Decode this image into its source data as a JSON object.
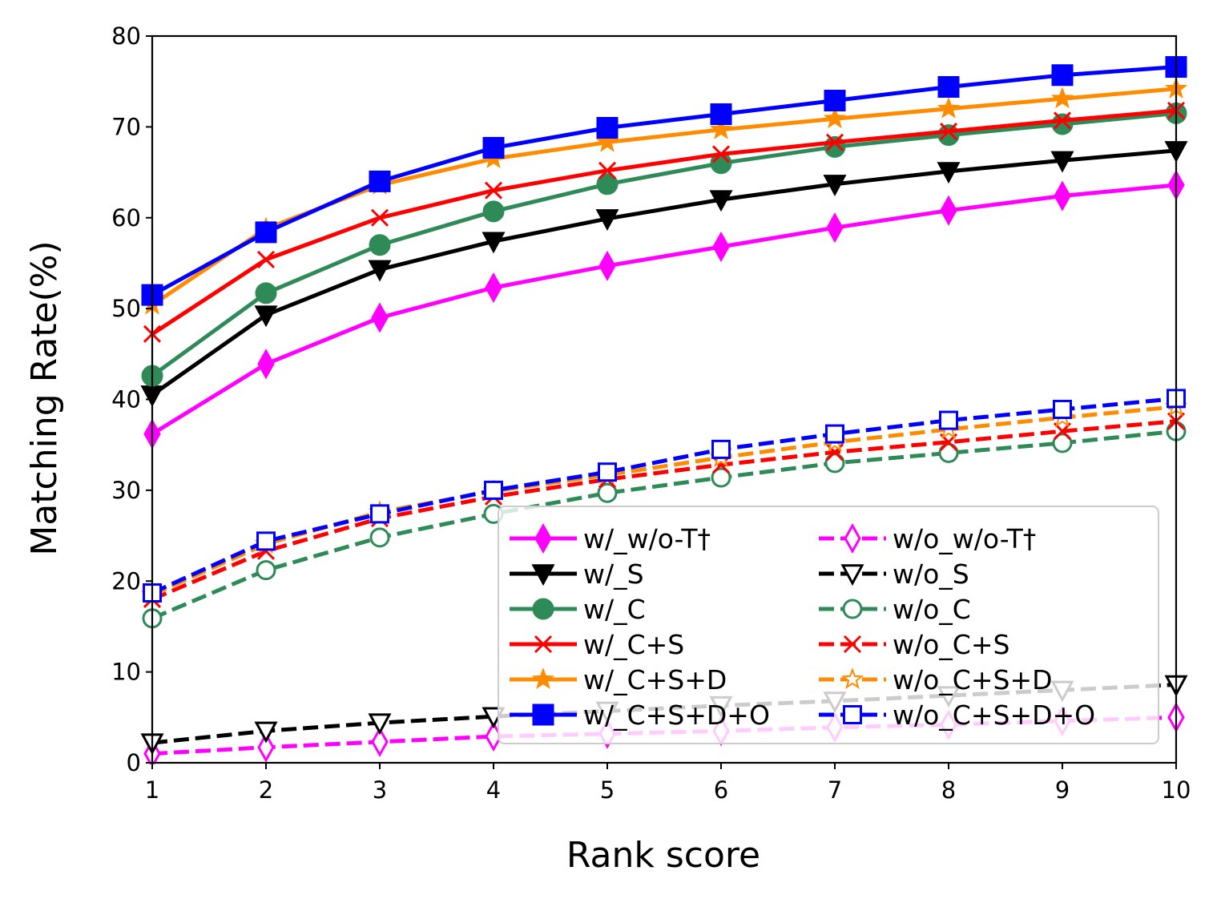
{
  "chart_data": {
    "type": "line",
    "xlabel": "Rank score",
    "ylabel": "Matching Rate(%)",
    "x": [
      1,
      2,
      3,
      4,
      5,
      6,
      7,
      8,
      9,
      10
    ],
    "xlim": [
      1,
      10
    ],
    "ylim": [
      0,
      80
    ],
    "xticks": [
      "1",
      "2",
      "3",
      "4",
      "5",
      "6",
      "7",
      "8",
      "9",
      "10"
    ],
    "yticks": [
      "0",
      "10",
      "20",
      "30",
      "40",
      "50",
      "60",
      "70",
      "80"
    ],
    "grid": false,
    "legend_position": "lower-right",
    "legend_columns": 2,
    "series": [
      {
        "name": "w/_w/o-T†",
        "color": "#ff00ff",
        "dash": "solid",
        "marker": "thin-diamond",
        "filled": true,
        "values": [
          36.2,
          43.9,
          49.0,
          52.3,
          54.7,
          56.8,
          58.9,
          60.8,
          62.4,
          63.6
        ]
      },
      {
        "name": "w/_S",
        "color": "#000000",
        "dash": "solid",
        "marker": "triangle-down",
        "filled": true,
        "values": [
          40.5,
          49.3,
          54.3,
          57.4,
          59.9,
          62.0,
          63.7,
          65.1,
          66.3,
          67.4
        ]
      },
      {
        "name": "w/_C",
        "color": "#2e8b57",
        "dash": "solid",
        "marker": "circle",
        "filled": true,
        "values": [
          42.6,
          51.7,
          57.0,
          60.7,
          63.7,
          66.0,
          67.8,
          69.1,
          70.3,
          71.5
        ]
      },
      {
        "name": "w/_C+S",
        "color": "#ff0000",
        "dash": "solid",
        "marker": "x",
        "filled": true,
        "values": [
          47.2,
          55.4,
          60.0,
          63.0,
          65.2,
          67.0,
          68.3,
          69.5,
          70.7,
          71.8
        ]
      },
      {
        "name": "w/_C+S+D",
        "color": "#ff8c00",
        "dash": "solid",
        "marker": "star",
        "filled": true,
        "values": [
          50.4,
          58.8,
          63.6,
          66.5,
          68.3,
          69.7,
          70.9,
          72.0,
          73.1,
          74.2
        ]
      },
      {
        "name": "w/_C+S+D+O",
        "color": "#0000ff",
        "dash": "solid",
        "marker": "square",
        "filled": true,
        "values": [
          51.5,
          58.4,
          64.0,
          67.7,
          69.9,
          71.4,
          72.9,
          74.4,
          75.7,
          76.6
        ]
      },
      {
        "name": "w/o_w/o-T†",
        "color": "#ff00ff",
        "dash": "dashed",
        "marker": "thin-diamond",
        "filled": false,
        "values": [
          1.0,
          1.7,
          2.3,
          2.9,
          3.2,
          3.5,
          3.9,
          4.2,
          4.6,
          5.0
        ]
      },
      {
        "name": "w/o_S",
        "color": "#000000",
        "dash": "dashed",
        "marker": "triangle-down",
        "filled": false,
        "values": [
          2.2,
          3.5,
          4.4,
          5.1,
          5.7,
          6.3,
          6.8,
          7.4,
          8.0,
          8.6
        ]
      },
      {
        "name": "w/o_C",
        "color": "#2e8b57",
        "dash": "dashed",
        "marker": "circle",
        "filled": false,
        "values": [
          15.9,
          21.2,
          24.8,
          27.4,
          29.7,
          31.4,
          33.0,
          34.1,
          35.2,
          36.5
        ]
      },
      {
        "name": "w/o_C+S",
        "color": "#ff0000",
        "dash": "dashed",
        "marker": "x",
        "filled": false,
        "values": [
          18.0,
          23.3,
          26.9,
          29.3,
          31.2,
          32.8,
          34.2,
          35.3,
          36.5,
          37.6
        ]
      },
      {
        "name": "w/o_C+S+D",
        "color": "#ff8c00",
        "dash": "dashed",
        "marker": "star",
        "filled": false,
        "values": [
          18.5,
          24.1,
          27.6,
          29.9,
          31.7,
          33.6,
          35.3,
          36.7,
          38.0,
          39.2
        ]
      },
      {
        "name": "w/o_C+S+D+O",
        "color": "#0000ff",
        "dash": "dashed",
        "marker": "square",
        "filled": false,
        "values": [
          18.7,
          24.4,
          27.4,
          30.0,
          32.0,
          34.5,
          36.2,
          37.7,
          38.9,
          40.1
        ]
      }
    ]
  }
}
